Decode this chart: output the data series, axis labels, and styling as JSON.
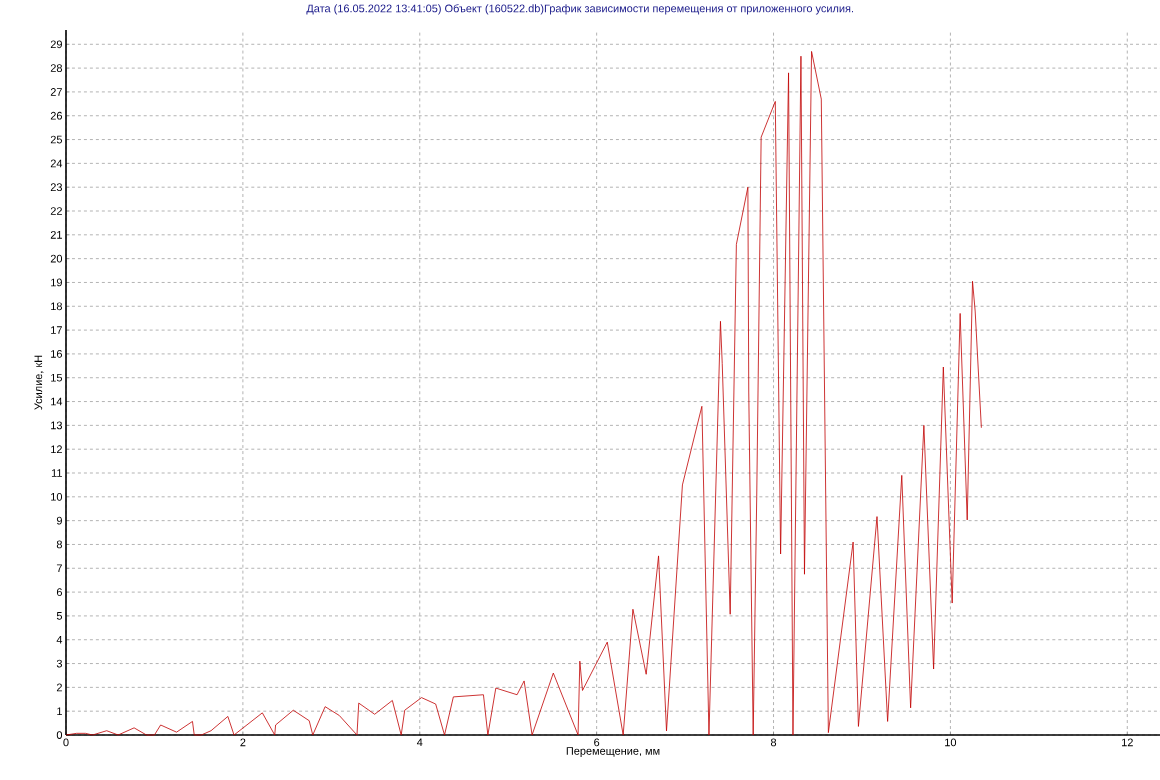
{
  "chart_data": {
    "type": "line",
    "title": "Дата (16.05.2022 13:41:05) Объект (160522.db)График зависимости перемещения от приложенного усилия.",
    "xlabel": "Перемещение, мм",
    "ylabel": "Усилие, кН",
    "xlim": [
      0,
      12.37
    ],
    "ylim": [
      0,
      29.6
    ],
    "xticks": [
      0,
      2,
      4,
      6,
      8,
      10,
      12
    ],
    "yticks": [
      0,
      1,
      2,
      3,
      4,
      5,
      6,
      7,
      8,
      9,
      10,
      11,
      12,
      13,
      14,
      15,
      16,
      17,
      18,
      19,
      20,
      21,
      22,
      23,
      24,
      25,
      26,
      27,
      28,
      29
    ],
    "grid": true,
    "series": [
      {
        "color": "#c00000",
        "x": [
          0,
          0.12,
          0.22,
          0.3,
          0.46,
          0.59,
          0.77,
          0.91,
          1.0,
          1.07,
          1.25,
          1.43,
          1.45,
          1.53,
          1.64,
          1.83,
          1.9,
          2.22,
          2.36,
          2.37,
          2.57,
          2.75,
          2.79,
          2.93,
          3.09,
          3.29,
          3.31,
          3.49,
          3.69,
          3.79,
          3.83,
          4.02,
          4.18,
          4.28,
          4.38,
          4.72,
          4.77,
          4.86,
          5.1,
          5.18,
          5.27,
          5.51,
          5.79,
          5.81,
          5.84,
          6.12,
          6.3,
          6.41,
          6.56,
          6.7,
          6.79,
          6.97,
          7.19,
          7.27,
          7.4,
          7.42,
          7.51,
          7.58,
          7.71,
          7.72,
          7.77,
          7.81,
          7.86,
          8.02,
          8.08,
          8.17,
          8.22,
          8.31,
          8.35,
          8.43,
          8.54,
          8.62,
          8.9,
          8.96,
          9.17,
          9.29,
          9.45,
          9.55,
          9.7,
          9.81,
          9.92,
          10.02,
          10.11,
          10.19,
          10.25,
          10.28,
          10.35
        ],
        "values": [
          0,
          0.07,
          0.07,
          0,
          0.18,
          0,
          0.3,
          0,
          0,
          0.42,
          0.12,
          0.57,
          0,
          0,
          0.18,
          0.78,
          0,
          0.93,
          0,
          0.42,
          1.04,
          0.6,
          0,
          1.19,
          0.82,
          0,
          1.34,
          0.87,
          1.45,
          0,
          1.04,
          1.57,
          1.3,
          0,
          1.6,
          1.69,
          0,
          1.97,
          1.69,
          2.27,
          0,
          2.6,
          0,
          3.1,
          1.87,
          3.9,
          0,
          5.28,
          2.55,
          7.52,
          0.17,
          10.5,
          13.8,
          0,
          17.37,
          15.6,
          5.07,
          20.6,
          23.0,
          14.4,
          0,
          10,
          25.1,
          26.6,
          7.6,
          27.8,
          0,
          28.5,
          6.75,
          28.7,
          26.7,
          0.1,
          8.1,
          0.36,
          9.17,
          0.57,
          10.9,
          1.14,
          13.0,
          2.77,
          15.45,
          5.54,
          17.7,
          9.03,
          19.05,
          17.8,
          12.9
        ]
      }
    ]
  }
}
